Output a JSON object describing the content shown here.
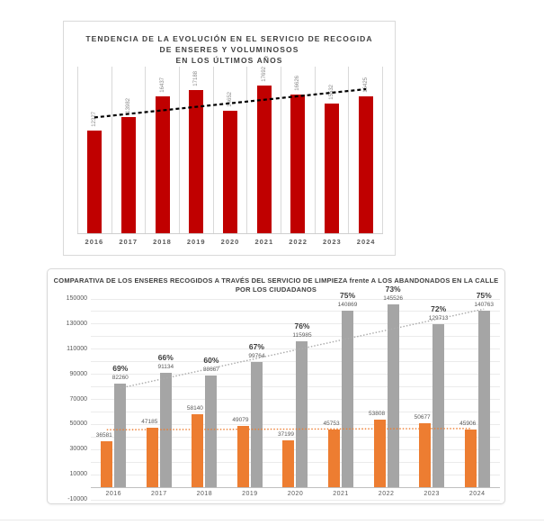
{
  "page": {
    "background": "#ffffff"
  },
  "chart_data": [
    {
      "type": "bar",
      "title": "TENDENCIA DE LA EVOLUCIÓN EN EL SERVICIO DE RECOGIDA\nDE ENSERES Y VOLUMINOSOS\nEN LOS ÚLTIMOS AÑOS",
      "categories": [
        "2016",
        "2017",
        "2018",
        "2019",
        "2020",
        "2021",
        "2022",
        "2023",
        "2024"
      ],
      "values": [
        12327,
        13982,
        16437,
        17188,
        14652,
        17692,
        16626,
        15532,
        16425
      ],
      "bar_color": "#C00000",
      "label_color": "#8a8a8a",
      "xlabel": "",
      "ylabel": "",
      "y_axis_hidden": true,
      "ylim": [
        0,
        20000
      ],
      "grid": "vertical-category-separators",
      "trendline": {
        "style": "dashed",
        "color": "#000000",
        "start_value": 13900,
        "end_value": 17300
      }
    },
    {
      "type": "bar",
      "title": "COMPARATIVA DE LOS ENSERES RECOGIDOS A TRAVÉS DEL SERVICIO DE LIMPIEZA frente A LOS ABANDONADOS EN LA CALLE\nPOR LOS CIUDADANOS",
      "categories": [
        "2016",
        "2017",
        "2018",
        "2019",
        "2020",
        "2021",
        "2022",
        "2023",
        "2024"
      ],
      "series": [
        {
          "name": "Recogidos a través del servicio de limpieza",
          "color": "#ED7D31",
          "values": [
            36581,
            47185,
            58140,
            49079,
            37199,
            45753,
            53808,
            50677,
            45906
          ]
        },
        {
          "name": "Abandonados en la calle por los ciudadanos",
          "color": "#A5A5A5",
          "values": [
            82260,
            91134,
            88667,
            99764,
            115985,
            140869,
            145526,
            129713,
            140763
          ]
        }
      ],
      "percent_labels": [
        "69%",
        "66%",
        "60%",
        "67%",
        "76%",
        "75%",
        "73%",
        "72%",
        "75%"
      ],
      "xlabel": "",
      "ylabel": "",
      "ylim": [
        -10000,
        150000
      ],
      "yticks": [
        150000,
        130000,
        110000,
        90000,
        70000,
        50000,
        30000,
        10000,
        -10000
      ],
      "grid_step": 10000,
      "legend": "none",
      "trendlines": [
        {
          "series": 1,
          "style": "dotted",
          "color": "#ababab",
          "start_value": 79000,
          "end_value": 142000
        },
        {
          "series": 0,
          "style": "dotted",
          "color": "#ED7D31",
          "start_value": 45800,
          "end_value": 46800
        }
      ]
    }
  ]
}
